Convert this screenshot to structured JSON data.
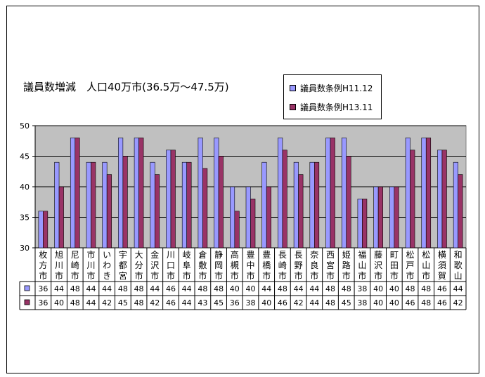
{
  "chart_data": {
    "type": "bar",
    "title": "議員数増減　人口40万市(36.5万～47.5万)",
    "ylim": [
      30,
      50
    ],
    "yticks": [
      30,
      35,
      40,
      45,
      50
    ],
    "grid": true,
    "legend_position": "top-right",
    "categories": [
      "枚方市",
      "旭川市",
      "尼崎市",
      "市川市",
      "いわき",
      "宇都宮",
      "大分市",
      "金沢市",
      "川口市",
      "岐阜市",
      "倉敷市",
      "静岡市",
      "高槻市",
      "豊中市",
      "豊橋市",
      "長崎市",
      "長野市",
      "奈良市",
      "西宮市",
      "姫路市",
      "福山市",
      "藤沢市",
      "町田市",
      "松戸市",
      "松山市",
      "横須賀",
      "和歌山"
    ],
    "series": [
      {
        "name": "議員数条例H11.12",
        "color": "#9999ff",
        "values": [
          36,
          44,
          48,
          44,
          44,
          48,
          48,
          44,
          46,
          44,
          48,
          48,
          40,
          40,
          44,
          48,
          44,
          44,
          48,
          48,
          38,
          40,
          40,
          48,
          48,
          46,
          44
        ]
      },
      {
        "name": "議員数条例H13.11",
        "color": "#993366",
        "values": [
          36,
          40,
          48,
          44,
          42,
          45,
          48,
          42,
          46,
          44,
          43,
          45,
          36,
          38,
          40,
          46,
          42,
          44,
          48,
          45,
          38,
          40,
          40,
          46,
          48,
          46,
          42
        ]
      }
    ],
    "plot_background": "#c0c0c0"
  }
}
